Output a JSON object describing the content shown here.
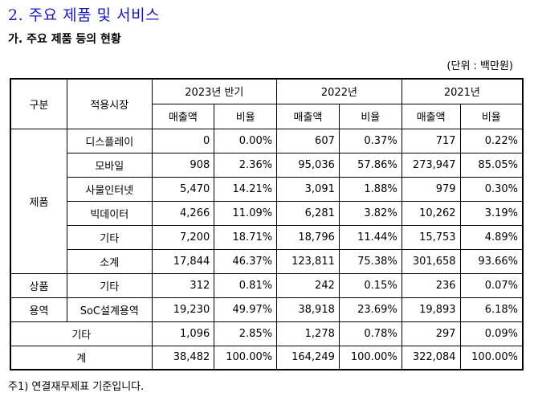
{
  "section_title": "2. 주요 제품 및 서비스",
  "subsection_title": "가. 주요 제품 등의 현황",
  "unit_label": "(단위 : 백만원)",
  "table": {
    "header": {
      "category": "구분",
      "market": "적용시장",
      "periods": [
        "2023년 반기",
        "2022년",
        "2021년"
      ],
      "sales": "매출액",
      "ratio": "비율"
    },
    "groups": {
      "products": "제품",
      "goods": "상품",
      "services": "용역"
    },
    "rows": [
      {
        "market": "디스플레이",
        "v": [
          "0",
          "0.00%",
          "607",
          "0.37%",
          "717",
          "0.22%"
        ]
      },
      {
        "market": "모바일",
        "v": [
          "908",
          "2.36%",
          "95,036",
          "57.86%",
          "273,947",
          "85.05%"
        ]
      },
      {
        "market": "사물인터넷",
        "v": [
          "5,470",
          "14.21%",
          "3,091",
          "1.88%",
          "979",
          "0.30%"
        ]
      },
      {
        "market": "빅데이터",
        "v": [
          "4,266",
          "11.09%",
          "6,281",
          "3.82%",
          "10,262",
          "3.19%"
        ]
      },
      {
        "market": "기타",
        "v": [
          "7,200",
          "18.71%",
          "18,796",
          "11.44%",
          "15,753",
          "4.89%"
        ]
      },
      {
        "market": "소계",
        "v": [
          "17,844",
          "46.37%",
          "123,811",
          "75.38%",
          "301,658",
          "93.66%"
        ]
      },
      {
        "market": "기타",
        "v": [
          "312",
          "0.81%",
          "242",
          "0.15%",
          "236",
          "0.07%"
        ]
      },
      {
        "market": "SoC설계용역",
        "v": [
          "19,230",
          "49.97%",
          "38,918",
          "23.69%",
          "19,893",
          "6.18%"
        ]
      },
      {
        "market": "기타",
        "v": [
          "1,096",
          "2.85%",
          "1,278",
          "0.78%",
          "297",
          "0.09%"
        ]
      },
      {
        "market": "계",
        "v": [
          "38,482",
          "100.00%",
          "164,249",
          "100.00%",
          "322,084",
          "100.00%"
        ]
      }
    ]
  },
  "footnote": "주1) 연결재무제표 기준입니다."
}
